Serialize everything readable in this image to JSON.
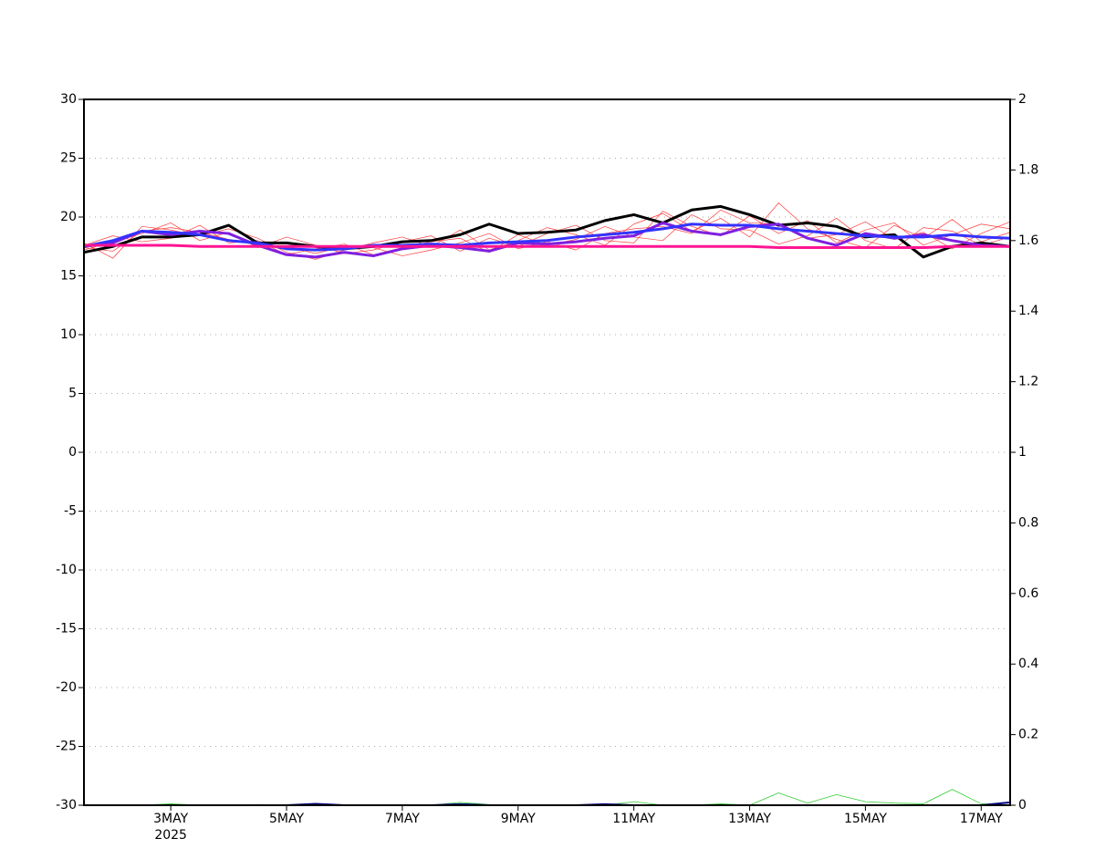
{
  "chart_data": {
    "type": "line",
    "xlim": [
      0,
      16
    ],
    "xticks": [
      {
        "value": 1.5,
        "label": "3MAY"
      },
      {
        "value": 3.5,
        "label": "5MAY"
      },
      {
        "value": 5.5,
        "label": "7MAY"
      },
      {
        "value": 7.5,
        "label": "9MAY"
      },
      {
        "value": 9.5,
        "label": "11MAY"
      },
      {
        "value": 11.5,
        "label": "13MAY"
      },
      {
        "value": 13.5,
        "label": "15MAY"
      },
      {
        "value": 15.5,
        "label": "17MAY"
      }
    ],
    "x_year_label": "2025",
    "ylim": [
      -30,
      30
    ],
    "yticks": [
      -30,
      -25,
      -20,
      -15,
      -10,
      -5,
      0,
      5,
      10,
      15,
      20,
      25,
      30
    ],
    "y2lim": [
      0,
      2
    ],
    "y2ticks": [
      0,
      0.2,
      0.4,
      0.6,
      0.8,
      1,
      1.2,
      1.4,
      1.6,
      1.8,
      2
    ],
    "grid": true,
    "x": [
      0,
      0.5,
      1,
      1.5,
      2,
      2.5,
      3,
      3.5,
      4,
      4.5,
      5,
      5.5,
      6,
      6.5,
      7,
      7.5,
      8,
      8.5,
      9,
      9.5,
      10,
      10.5,
      11,
      11.5,
      12,
      12.5,
      13,
      13.5,
      14,
      14.5,
      15,
      15.5,
      16
    ],
    "series": [
      {
        "color": "#ff3b3b",
        "width": 0.7,
        "values": [
          17.8,
          16.5,
          19.2,
          18.9,
          18.4,
          19.0,
          18.2,
          17.0,
          16.4,
          17.2,
          17.8,
          18.3,
          17.5,
          18.9,
          17.2,
          18.0,
          19.1,
          18.5,
          17.6,
          19.4,
          20.3,
          18.8,
          19.9,
          18.3,
          21.2,
          19.0,
          18.1,
          17.4,
          19.3,
          18.2,
          19.8,
          17.9,
          18.7
        ]
      },
      {
        "color": "#ff3b3b",
        "width": 0.7,
        "values": [
          17.2,
          17.9,
          18.6,
          19.5,
          18.0,
          18.7,
          17.4,
          18.3,
          17.6,
          16.9,
          17.2,
          17.9,
          18.4,
          17.1,
          18.2,
          17.5,
          18.6,
          19.3,
          18.0,
          17.8,
          20.5,
          19.2,
          18.4,
          20.1,
          18.6,
          19.7,
          17.8,
          18.9,
          19.5,
          17.6,
          18.5,
          19.4,
          19.0
        ]
      },
      {
        "color": "#ff3b3b",
        "width": 0.7,
        "values": [
          17.6,
          18.4,
          17.9,
          18.2,
          19.3,
          17.8,
          18.0,
          16.8,
          17.3,
          17.7,
          16.8,
          17.4,
          17.9,
          18.2,
          17.0,
          18.5,
          17.6,
          18.1,
          19.2,
          18.3,
          18.0,
          20.2,
          19.0,
          18.9,
          17.7,
          18.4,
          19.9,
          18.0,
          17.3,
          19.1,
          18.8,
          17.6,
          18.3
        ]
      },
      {
        "color": "#ff3b3b",
        "width": 0.7,
        "values": [
          17.4,
          17.1,
          18.8,
          19.1,
          18.7,
          18.1,
          17.6,
          17.5,
          16.9,
          17.5,
          17.4,
          16.7,
          17.2,
          17.8,
          18.6,
          17.3,
          17.9,
          17.2,
          18.6,
          19.0,
          19.2,
          18.6,
          20.6,
          19.5,
          19.4,
          18.2,
          18.5,
          19.6,
          18.1,
          18.7,
          17.3,
          18.6,
          19.6
        ]
      },
      {
        "color": "#000000",
        "width": 3,
        "values": [
          17.0,
          17.5,
          18.3,
          18.3,
          18.5,
          19.3,
          17.8,
          17.8,
          17.5,
          17.3,
          17.5,
          17.9,
          18.0,
          18.5,
          19.4,
          18.6,
          18.7,
          18.9,
          19.7,
          20.2,
          19.5,
          20.6,
          20.9,
          20.2,
          19.3,
          19.5,
          19.2,
          18.3,
          18.5,
          16.6,
          17.5,
          17.8,
          17.5
        ]
      },
      {
        "color": "#7f1fe0",
        "width": 3,
        "values": [
          17.5,
          17.8,
          18.8,
          18.5,
          18.8,
          18.6,
          17.6,
          16.8,
          16.6,
          17.0,
          16.7,
          17.3,
          17.6,
          17.4,
          17.1,
          17.8,
          17.7,
          17.9,
          18.2,
          18.4,
          19.5,
          18.8,
          18.5,
          19.2,
          19.4,
          18.2,
          17.6,
          18.6,
          18.2,
          18.5,
          18.0,
          17.6,
          17.5
        ]
      },
      {
        "color": "#3333ff",
        "width": 3,
        "values": [
          17.5,
          18.0,
          18.8,
          18.7,
          18.5,
          18.0,
          17.8,
          17.3,
          17.2,
          17.3,
          17.6,
          17.6,
          17.7,
          17.6,
          17.8,
          17.9,
          18.0,
          18.3,
          18.5,
          18.7,
          19.0,
          19.4,
          19.3,
          19.3,
          19.0,
          18.8,
          18.6,
          18.4,
          18.3,
          18.3,
          18.5,
          18.3,
          18.2
        ]
      },
      {
        "color": "#ff1493",
        "width": 3,
        "values": [
          17.6,
          17.6,
          17.6,
          17.6,
          17.5,
          17.5,
          17.5,
          17.5,
          17.5,
          17.5,
          17.5,
          17.5,
          17.5,
          17.5,
          17.5,
          17.5,
          17.5,
          17.5,
          17.5,
          17.5,
          17.5,
          17.5,
          17.5,
          17.5,
          17.4,
          17.4,
          17.4,
          17.4,
          17.4,
          17.4,
          17.5,
          17.5,
          17.5
        ]
      },
      {
        "color": "#33cc33",
        "width": 0.8,
        "axis": "y2",
        "values": [
          0,
          0,
          0,
          0.004,
          0,
          0,
          0.002,
          0,
          0,
          0,
          0,
          0,
          0,
          0.008,
          0.002,
          0,
          0,
          0,
          0,
          0.01,
          0,
          0,
          0.004,
          0,
          0.035,
          0.006,
          0.03,
          0.01,
          0.006,
          0.004,
          0.045,
          0.004,
          0
        ]
      },
      {
        "color": "#000080",
        "width": 2,
        "axis": "y2",
        "values": [
          0,
          0,
          0,
          0,
          0,
          0,
          0,
          0,
          0.004,
          0,
          0,
          0,
          0,
          0.003,
          0,
          0,
          0,
          0,
          0.003,
          0,
          0,
          0,
          0,
          0,
          0,
          0,
          0,
          0,
          0,
          0,
          0,
          0,
          0.008
        ]
      }
    ]
  }
}
